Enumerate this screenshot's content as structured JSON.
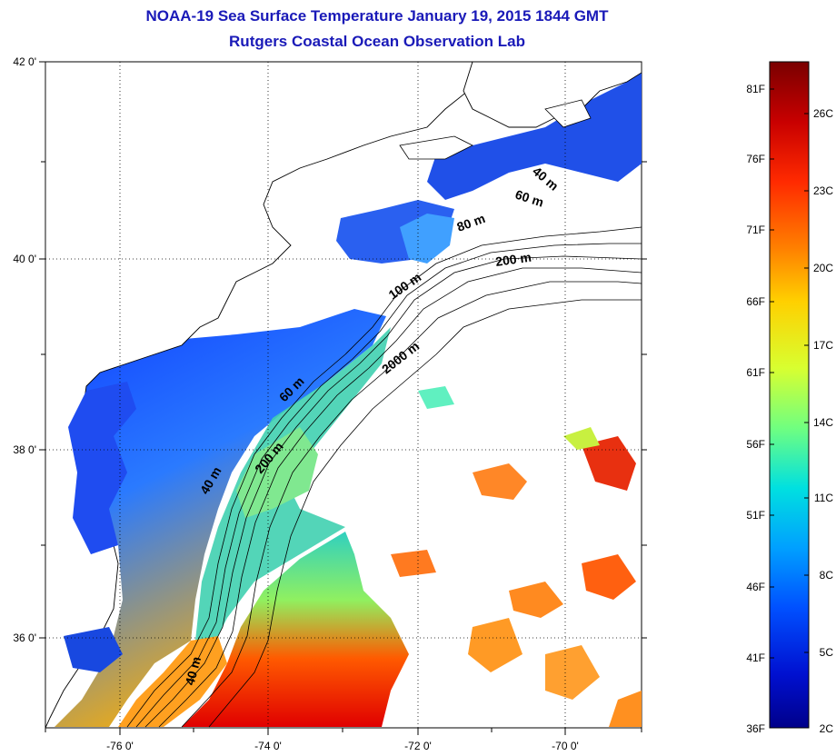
{
  "header": {
    "title": "NOAA-19 Sea Surface Temperature January 19, 2015 1844 GMT",
    "subtitle": "Rutgers Coastal Ocean Observation Lab"
  },
  "axes": {
    "lat_labels": [
      "42 0'",
      "40 0'",
      "38 0'",
      "36 0'"
    ],
    "lon_labels": [
      "-76 0'",
      "-74 0'",
      "-72 0'",
      "-70 0'"
    ]
  },
  "contours": [
    "40 m",
    "60 m",
    "80 m",
    "200 m",
    "100 m",
    "2000 m",
    "60 m",
    "200 m",
    "40 m",
    "40 m"
  ],
  "colorbar": {
    "f_labels": [
      "81F",
      "76F",
      "71F",
      "66F",
      "61F",
      "56F",
      "51F",
      "46F",
      "41F",
      "36F"
    ],
    "c_labels": [
      "26C",
      "23C",
      "20C",
      "17C",
      "14C",
      "11C",
      "8C",
      "5C",
      "2C"
    ],
    "colors": [
      "#7a0000",
      "#c80000",
      "#ff2a00",
      "#ff8000",
      "#ffd000",
      "#d8ff30",
      "#70ff80",
      "#00e0e0",
      "#00a0ff",
      "#0050ff",
      "#0010d0",
      "#00008a"
    ]
  },
  "colors": {
    "title": "#1a1ab8",
    "land": "#ffffff",
    "coast": "#000000"
  }
}
